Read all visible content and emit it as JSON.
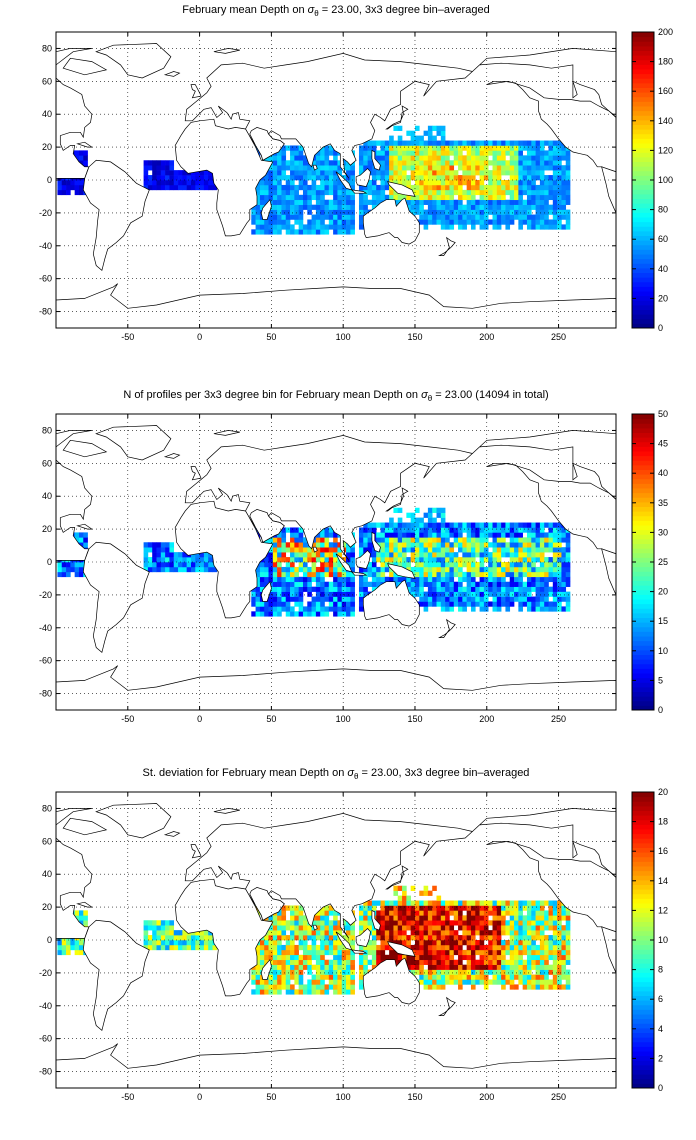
{
  "panels": [
    {
      "title_parts": [
        "February mean Depth on ",
        "σ",
        "θ",
        " = 23.00, 3x3 degree bin–averaged"
      ],
      "colorbar": {
        "min": 0,
        "max": 200,
        "ticks": [
          0,
          20,
          40,
          60,
          80,
          100,
          120,
          140,
          160,
          180,
          200
        ]
      },
      "x_ticks": [
        -50,
        0,
        50,
        100,
        150,
        200,
        250
      ],
      "y_ticks": [
        80,
        60,
        40,
        20,
        0,
        -20,
        -40,
        -60,
        -80
      ],
      "field": "mean_depth"
    },
    {
      "title_parts": [
        "N of profiles per 3x3 degree bin for February mean Depth on ",
        "σ",
        "θ",
        " = 23.00 (14094 in total)"
      ],
      "colorbar": {
        "min": 0,
        "max": 50,
        "ticks": [
          0,
          5,
          10,
          15,
          20,
          25,
          30,
          35,
          40,
          45,
          50
        ]
      },
      "x_ticks": [
        -50,
        0,
        50,
        100,
        150,
        200,
        250
      ],
      "y_ticks": [
        80,
        60,
        40,
        20,
        0,
        -20,
        -40,
        -60,
        -80
      ],
      "field": "n_profiles"
    },
    {
      "title_parts": [
        "St. deviation for February mean Depth on ",
        "σ",
        "θ",
        " = 23.00, 3x3 degree bin–averaged"
      ],
      "colorbar": {
        "min": 0,
        "max": 20,
        "ticks": [
          0,
          2,
          4,
          6,
          8,
          10,
          12,
          14,
          16,
          18,
          20
        ]
      },
      "x_ticks": [
        -50,
        0,
        50,
        100,
        150,
        200,
        250
      ],
      "y_ticks": [
        80,
        60,
        40,
        20,
        0,
        -20,
        -40,
        -60,
        -80
      ],
      "field": "std_depth"
    }
  ],
  "map": {
    "lon_range": [
      -100,
      290
    ],
    "lat_range": [
      -90,
      90
    ],
    "grid": "dotted",
    "colormap": "jet"
  },
  "colors": {
    "coast": "#000000",
    "grid": "#000000"
  }
}
